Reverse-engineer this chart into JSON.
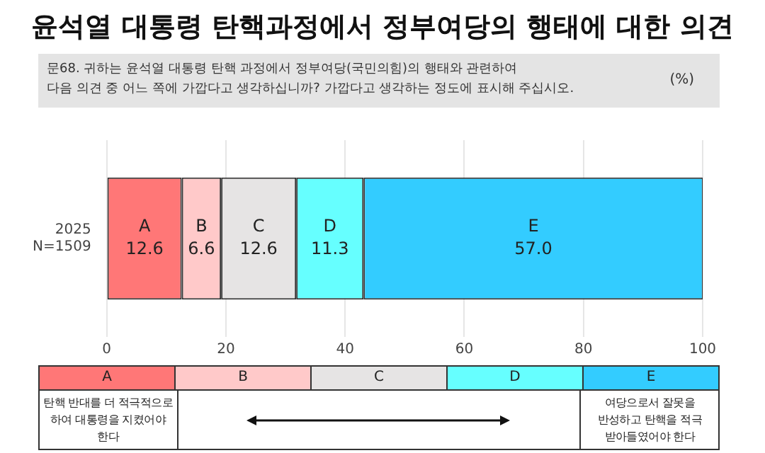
{
  "chart_data": {
    "type": "bar",
    "orientation": "horizontal",
    "stacked": true,
    "title": "윤석열 대통령 탄핵과정에서 정부여당의 행태에 대한 의견",
    "subtitle": "문68. 귀하는 윤석열 대통령 탄핵 과정에서 정부여당(국민의힘)의 행태와 관련하여\n다음 의견 중 어느 쪽에 가깝다고 생각하십니까? 가깝다고 생각하는 정도에 표시해 주십시오.",
    "categories": [
      "2025\nN=1509"
    ],
    "series": [
      {
        "name": "A",
        "color": "#ff7777",
        "values": [
          12.6
        ],
        "value_labels": [
          "12.6"
        ]
      },
      {
        "name": "B",
        "color": "#ffc9c9",
        "values": [
          6.6
        ],
        "value_labels": [
          "6.6"
        ]
      },
      {
        "name": "C",
        "color": "#e6e4e4",
        "values": [
          12.6
        ],
        "value_labels": [
          "12.6"
        ]
      },
      {
        "name": "D",
        "color": "#66ffff",
        "values": [
          11.3
        ],
        "value_labels": [
          "11.3"
        ]
      },
      {
        "name": "E",
        "color": "#33ccff",
        "values": [
          57.0
        ],
        "value_labels": [
          "57.0"
        ]
      }
    ],
    "xlim": [
      0,
      100
    ],
    "xticks": [
      0,
      20,
      40,
      60,
      80,
      100
    ],
    "grid": "x",
    "annotations": [
      "(%)",
      "탄핵 반대를 더 적극적으로 하여 대통령을 지켰어야 한다",
      "여당으로서 잘못을 반성하고 탄핵을 적극 받아들였어야 한다"
    ]
  }
}
